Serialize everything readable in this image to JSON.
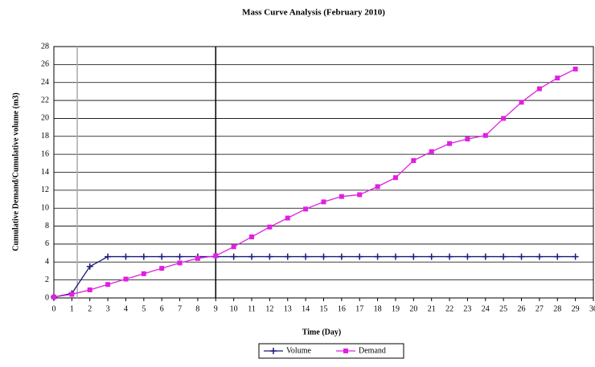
{
  "chart_data": {
    "type": "line",
    "title": "Mass Curve Analysis (February 2010)",
    "xlabel": "Time (Day)",
    "ylabel": "Cumulative Demand/Cumulative volume (m3)",
    "x": [
      0,
      1,
      2,
      3,
      4,
      5,
      6,
      7,
      8,
      9,
      10,
      11,
      12,
      13,
      14,
      15,
      16,
      17,
      18,
      19,
      20,
      21,
      22,
      23,
      24,
      25,
      26,
      27,
      28,
      29
    ],
    "series": [
      {
        "name": "Volume",
        "color": "#1a1a7a",
        "marker": "plus",
        "values": [
          0.1,
          0.5,
          3.5,
          4.6,
          4.6,
          4.6,
          4.6,
          4.6,
          4.6,
          4.6,
          4.6,
          4.6,
          4.6,
          4.6,
          4.6,
          4.6,
          4.6,
          4.6,
          4.6,
          4.6,
          4.6,
          4.6,
          4.6,
          4.6,
          4.6,
          4.6,
          4.6,
          4.6,
          4.6,
          4.6
        ]
      },
      {
        "name": "Demand",
        "color": "#e020e0",
        "marker": "square",
        "values": [
          0.1,
          0.4,
          0.9,
          1.5,
          2.1,
          2.7,
          3.3,
          3.9,
          4.4,
          4.7,
          5.7,
          6.8,
          7.9,
          8.9,
          9.9,
          10.7,
          11.3,
          11.5,
          12.4,
          13.4,
          15.3,
          16.3,
          17.2,
          17.7,
          18.1,
          20.0,
          21.8,
          23.3,
          24.5,
          25.5
        ]
      }
    ],
    "reference_lines": [
      {
        "x": 1.3,
        "color": "#aaaaaa"
      },
      {
        "x": 9,
        "color": "#000000"
      }
    ],
    "xlim": [
      0,
      30
    ],
    "xticks": [
      0,
      1,
      2,
      3,
      4,
      5,
      6,
      7,
      8,
      9,
      10,
      11,
      12,
      13,
      14,
      15,
      16,
      17,
      18,
      19,
      20,
      21,
      22,
      23,
      24,
      25,
      26,
      27,
      28,
      29,
      30
    ],
    "ylim": [
      0,
      28
    ],
    "yticks": [
      0,
      2,
      4,
      6,
      8,
      10,
      12,
      14,
      16,
      18,
      20,
      22,
      24,
      26,
      28
    ],
    "grid": true,
    "legend": "bottom"
  }
}
